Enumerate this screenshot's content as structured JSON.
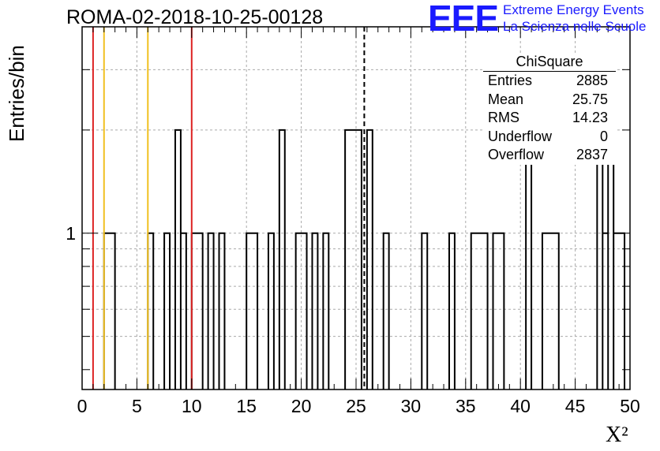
{
  "title": "ROMA-02-2018-10-25-00128",
  "logo": {
    "mark": "EEE",
    "line1": "Extreme Energy Events",
    "line2": "La Scienza nelle Scuole",
    "color": "#1a1aff"
  },
  "stats": {
    "title": "ChiSquare",
    "rows": [
      {
        "label": "Entries",
        "value": "2885"
      },
      {
        "label": "Mean",
        "value": "25.75"
      },
      {
        "label": "RMS",
        "value": "14.23"
      },
      {
        "label": "Underflow",
        "value": "0"
      },
      {
        "label": "Overflow",
        "value": "2837"
      }
    ]
  },
  "chart_data": {
    "type": "bar",
    "histogram": true,
    "title": "ROMA-02-2018-10-25-00128",
    "xlabel": "X²",
    "ylabel": "Entries/bin",
    "xlim": [
      0,
      50
    ],
    "ylog": true,
    "ylim": [
      0.35,
      4
    ],
    "bin_width": 0.5,
    "xticks": [
      "0",
      "5",
      "10",
      "15",
      "20",
      "25",
      "30",
      "35",
      "40",
      "45",
      "50"
    ],
    "yticks": [
      "1"
    ],
    "grid": true,
    "bins": [
      [
        2,
        3,
        1
      ],
      [
        6,
        6.5,
        1
      ],
      [
        7.5,
        8,
        1
      ],
      [
        8.5,
        9,
        2
      ],
      [
        9,
        9.5,
        1
      ],
      [
        10,
        11,
        1
      ],
      [
        11.5,
        12,
        1
      ],
      [
        12.5,
        13,
        1
      ],
      [
        15,
        16,
        1
      ],
      [
        17,
        17.5,
        1
      ],
      [
        18,
        18.5,
        2
      ],
      [
        19.5,
        20.5,
        1
      ],
      [
        21,
        21.5,
        1
      ],
      [
        22,
        22.5,
        1
      ],
      [
        24,
        25.5,
        2
      ],
      [
        26,
        26.5,
        2
      ],
      [
        27.5,
        28,
        1
      ],
      [
        31,
        31.5,
        1
      ],
      [
        33.5,
        34,
        1
      ],
      [
        35.5,
        37,
        1
      ],
      [
        37.5,
        38.5,
        1
      ],
      [
        40.5,
        41,
        2
      ],
      [
        42,
        43.5,
        1
      ],
      [
        47,
        47.5,
        2
      ],
      [
        47.5,
        48,
        1
      ],
      [
        48,
        48.5,
        2
      ],
      [
        48.5,
        49.5,
        1
      ]
    ],
    "vertical_lines": [
      {
        "x": 1,
        "color": "#dd2222",
        "style": "solid"
      },
      {
        "x": 2,
        "color": "#f0c020",
        "style": "solid"
      },
      {
        "x": 6,
        "color": "#f0c020",
        "style": "solid"
      },
      {
        "x": 10,
        "color": "#dd2222",
        "style": "solid"
      },
      {
        "x": 25.75,
        "color": "#000000",
        "style": "dashed"
      }
    ]
  }
}
